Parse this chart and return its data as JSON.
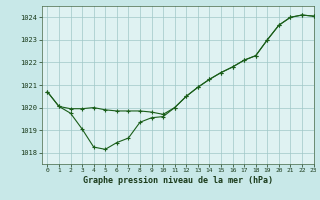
{
  "title": "Graphe pression niveau de la mer (hPa)",
  "background_color": "#c8e8e8",
  "plot_background": "#dff2f2",
  "line_color": "#1a5e1a",
  "grid_color": "#a0c8c8",
  "xlim": [
    -0.5,
    23
  ],
  "ylim": [
    1017.5,
    1024.5
  ],
  "yticks": [
    1018,
    1019,
    1020,
    1021,
    1022,
    1023,
    1024
  ],
  "xticks": [
    0,
    1,
    2,
    3,
    4,
    5,
    6,
    7,
    8,
    9,
    10,
    11,
    12,
    13,
    14,
    15,
    16,
    17,
    18,
    19,
    20,
    21,
    22,
    23
  ],
  "series1_x": [
    0,
    1,
    2,
    3,
    4,
    5,
    6,
    7,
    8,
    9,
    10,
    11,
    12,
    13,
    14,
    15,
    16,
    17,
    18,
    19,
    20,
    21,
    22,
    23
  ],
  "series1_y": [
    1020.7,
    1020.05,
    1019.75,
    1019.05,
    1018.25,
    1018.15,
    1018.45,
    1018.65,
    1019.35,
    1019.55,
    1019.6,
    1020.0,
    1020.5,
    1020.9,
    1021.25,
    1021.55,
    1021.8,
    1022.1,
    1022.3,
    1023.0,
    1023.65,
    1024.0,
    1024.1,
    1024.05
  ],
  "series2_x": [
    0,
    1,
    2,
    3,
    4,
    5,
    6,
    7,
    8,
    9,
    10,
    11,
    12,
    13,
    14,
    15,
    16,
    17,
    18,
    19,
    20,
    21,
    22,
    23
  ],
  "series2_y": [
    1020.7,
    1020.05,
    1019.95,
    1019.95,
    1020.0,
    1019.9,
    1019.85,
    1019.85,
    1019.85,
    1019.8,
    1019.7,
    1020.0,
    1020.5,
    1020.9,
    1021.25,
    1021.55,
    1021.8,
    1022.1,
    1022.3,
    1023.0,
    1023.65,
    1024.0,
    1024.1,
    1024.05
  ],
  "title_fontsize": 6,
  "tick_fontsize": 5,
  "linewidth": 0.8,
  "markersize": 2.5
}
